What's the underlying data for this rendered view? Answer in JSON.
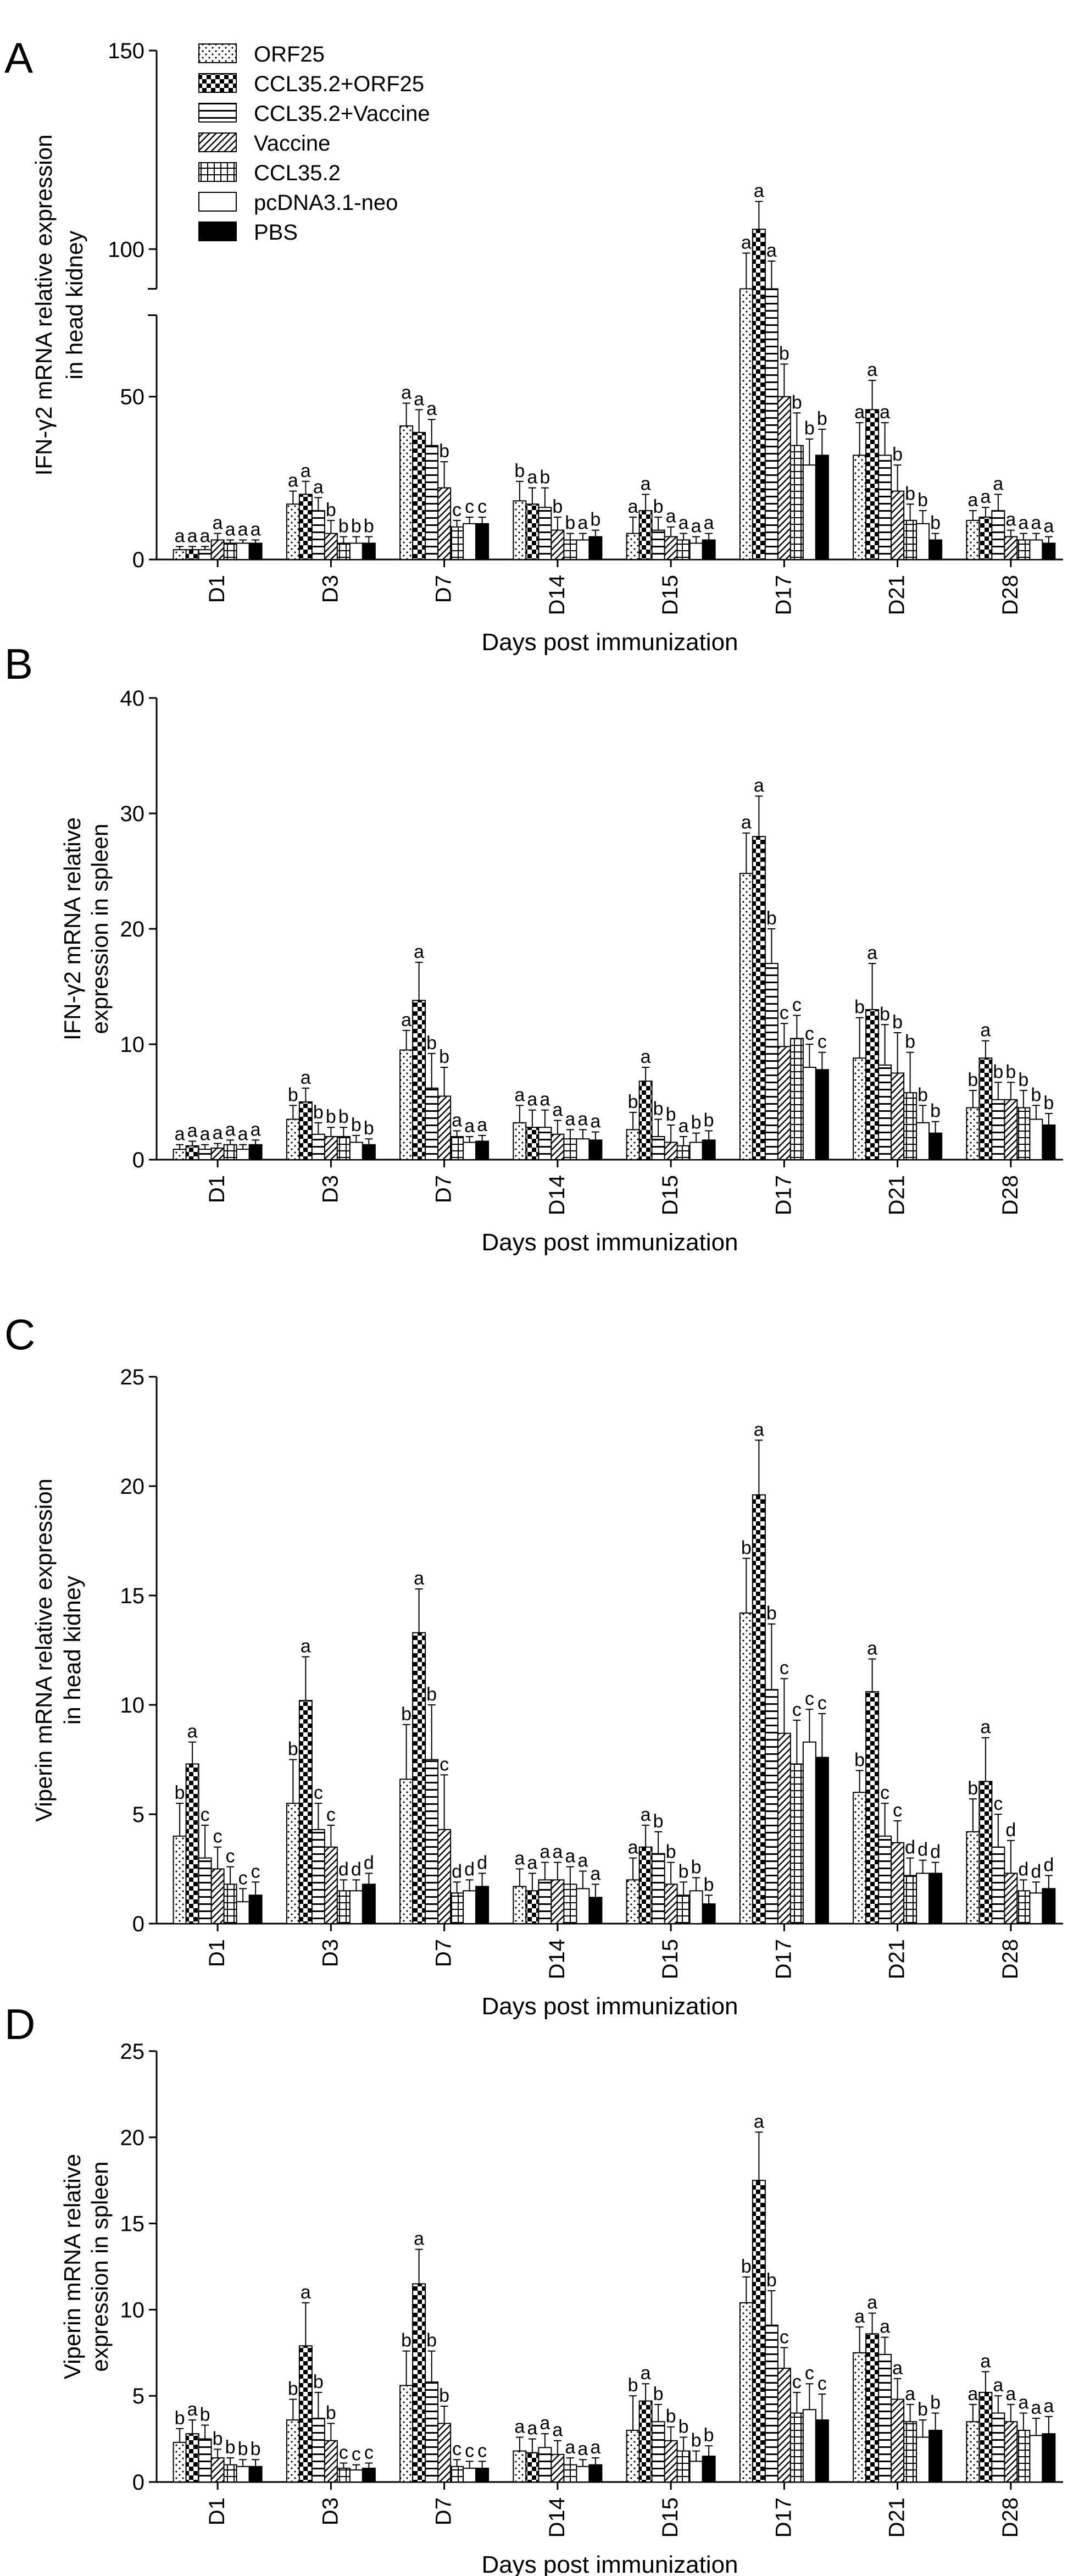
{
  "legend": {
    "items": [
      {
        "label": "ORF25",
        "pattern": "dots"
      },
      {
        "label": "CCL35.2+ORF25",
        "pattern": "checker"
      },
      {
        "label": "CCL35.2+Vaccine",
        "pattern": "hlines"
      },
      {
        "label": "Vaccine",
        "pattern": "diag"
      },
      {
        "label": "CCL35.2",
        "pattern": "grid"
      },
      {
        "label": "pcDNA3.1-neo",
        "pattern": "white"
      },
      {
        "label": "PBS",
        "pattern": "black"
      }
    ]
  },
  "chart_data": [
    {
      "panel": "A",
      "type": "bar",
      "ylabel": [
        "IFN-γ2 mRNA relative expression",
        "in head kidney"
      ],
      "xlabel": "Days post immunization",
      "categories": [
        "D1",
        "D3",
        "D7",
        "D14",
        "D15",
        "D17",
        "D21",
        "D28"
      ],
      "ylim": [
        0,
        150
      ],
      "axis_break": [
        75,
        90
      ],
      "yticks": [
        "0",
        "50",
        "100",
        "150"
      ],
      "series": [
        {
          "name": "ORF25",
          "values": [
            3,
            17,
            41,
            18,
            8,
            89,
            32,
            12
          ],
          "errors": [
            1,
            4,
            7,
            6,
            5,
            10,
            10,
            3
          ],
          "letters": [
            "a",
            "a",
            "a",
            "b",
            "a",
            "a",
            "a",
            "a"
          ]
        },
        {
          "name": "CCL35.2+ORF25",
          "values": [
            3,
            20,
            39,
            17,
            15,
            105,
            46,
            13
          ],
          "errors": [
            1,
            4,
            7,
            5,
            5,
            7,
            9,
            3
          ],
          "letters": [
            "a",
            "a",
            "a",
            "a",
            "a",
            "a",
            "a",
            "a"
          ]
        },
        {
          "name": "CCL35.2+Vaccine",
          "values": [
            3,
            15,
            35,
            16,
            9,
            85,
            32,
            15
          ],
          "errors": [
            1,
            4,
            8,
            6,
            4,
            12,
            10,
            5
          ],
          "letters": [
            "a",
            "a",
            "a",
            "b",
            "b",
            "a",
            "a",
            "a"
          ]
        },
        {
          "name": "Vaccine",
          "values": [
            6,
            8,
            22,
            9,
            7,
            50,
            21,
            7
          ],
          "errors": [
            2,
            4,
            8,
            4,
            3,
            10,
            8,
            2
          ],
          "letters": [
            "a",
            "b",
            "b",
            "b",
            "a",
            "b",
            "b",
            "a"
          ]
        },
        {
          "name": "CCL35.2",
          "values": [
            5,
            5,
            10,
            6,
            6,
            35,
            12,
            6
          ],
          "errors": [
            1,
            2,
            2,
            2,
            2,
            10,
            5,
            2
          ],
          "letters": [
            "a",
            "b",
            "c",
            "b",
            "a",
            "b",
            "b",
            "a"
          ]
        },
        {
          "name": "pcDNA3.1-neo",
          "values": [
            5,
            5,
            11,
            6,
            5,
            29,
            11,
            6
          ],
          "errors": [
            1,
            2,
            2,
            2,
            2,
            8,
            4,
            2
          ],
          "letters": [
            "a",
            "b",
            "c",
            "a",
            "a",
            "b",
            "b",
            "a"
          ]
        },
        {
          "name": "PBS",
          "values": [
            5,
            5,
            11,
            7,
            6,
            32,
            6,
            5
          ],
          "errors": [
            1,
            2,
            2,
            2,
            2,
            8,
            2,
            2
          ],
          "letters": [
            "a",
            "b",
            "c",
            "b",
            "a",
            "b",
            "b",
            "a"
          ]
        }
      ]
    },
    {
      "panel": "B",
      "type": "bar",
      "ylabel": [
        "IFN-γ2 mRNA relative",
        "expression in spleen"
      ],
      "xlabel": "Days post immunization",
      "categories": [
        "D1",
        "D3",
        "D7",
        "D14",
        "D15",
        "D17",
        "D21",
        "D28"
      ],
      "ylim": [
        0,
        40
      ],
      "yticks": [
        "0",
        "10",
        "20",
        "30",
        "40"
      ],
      "series": [
        {
          "name": "ORF25",
          "values": [
            0.9,
            3.5,
            9.5,
            3.2,
            2.6,
            24.8,
            8.8,
            4.5
          ],
          "errors": [
            0.4,
            1.2,
            1.7,
            1.5,
            1.5,
            3.5,
            3.5,
            1.5
          ],
          "letters": [
            "a",
            "b",
            "a",
            "a",
            "b",
            "a",
            "b",
            "b"
          ]
        },
        {
          "name": "CCL35.2+ORF25",
          "values": [
            1.2,
            5.0,
            13.8,
            2.8,
            6.8,
            28.0,
            13.0,
            8.8
          ],
          "errors": [
            0.4,
            1.2,
            3.3,
            1.5,
            1.2,
            3.5,
            4.0,
            1.5
          ],
          "letters": [
            "a",
            "a",
            "a",
            "a",
            "a",
            "a",
            "a",
            "a"
          ]
        },
        {
          "name": "CCL35.2+Vaccine",
          "values": [
            0.9,
            2.2,
            6.2,
            2.8,
            2.0,
            17.0,
            8.2,
            5.2
          ],
          "errors": [
            0.4,
            1.0,
            3.0,
            1.5,
            1.5,
            3.0,
            3.5,
            1.5
          ],
          "letters": [
            "a",
            "b",
            "b",
            "a",
            "b",
            "b",
            "b",
            "b"
          ]
        },
        {
          "name": "Vaccine",
          "values": [
            1.0,
            2.0,
            5.5,
            2.2,
            1.5,
            9.8,
            7.5,
            5.2
          ],
          "errors": [
            0.4,
            0.8,
            2.5,
            1.2,
            1.5,
            2.0,
            3.5,
            1.5
          ],
          "letters": [
            "a",
            "b",
            "b",
            "a",
            "b",
            "c",
            "b",
            "b"
          ]
        },
        {
          "name": "CCL35.2",
          "values": [
            1.3,
            2.0,
            2.0,
            1.8,
            1.2,
            10.5,
            5.8,
            4.5
          ],
          "errors": [
            0.4,
            0.8,
            0.5,
            0.8,
            0.8,
            2.0,
            3.5,
            1.5
          ],
          "letters": [
            "a",
            "b",
            "a",
            "a",
            "a",
            "c",
            "b",
            "b"
          ]
        },
        {
          "name": "pcDNA3.1-neo",
          "values": [
            0.9,
            1.5,
            1.5,
            1.8,
            1.5,
            8.0,
            3.2,
            3.5
          ],
          "errors": [
            0.4,
            0.6,
            0.5,
            0.8,
            0.8,
            2.0,
            1.5,
            1.2
          ],
          "letters": [
            "a",
            "b",
            "a",
            "a",
            "b",
            "c",
            "b",
            "b"
          ]
        },
        {
          "name": "PBS",
          "values": [
            1.3,
            1.3,
            1.6,
            1.7,
            1.7,
            7.8,
            2.3,
            3.0
          ],
          "errors": [
            0.4,
            0.5,
            0.5,
            0.7,
            0.8,
            1.5,
            1.0,
            1.0
          ],
          "letters": [
            "a",
            "b",
            "a",
            "a",
            "b",
            "c",
            "b",
            "b"
          ]
        }
      ]
    },
    {
      "panel": "C",
      "type": "bar",
      "ylabel": [
        "Viperin mRNA relative expression",
        "in head kidney"
      ],
      "xlabel": "Days post immunization",
      "categories": [
        "D1",
        "D3",
        "D7",
        "D14",
        "D15",
        "D17",
        "D21",
        "D28"
      ],
      "ylim": [
        0,
        25
      ],
      "yticks": [
        "0",
        "5",
        "10",
        "15",
        "20",
        "25"
      ],
      "series": [
        {
          "name": "ORF25",
          "values": [
            4.0,
            5.5,
            6.6,
            1.7,
            2.0,
            14.2,
            6.0,
            4.2
          ],
          "errors": [
            1.5,
            2.0,
            2.5,
            0.8,
            1.0,
            2.5,
            1.0,
            1.5
          ],
          "letters": [
            "b",
            "b",
            "b",
            "a",
            "a",
            "b",
            "b",
            "b"
          ]
        },
        {
          "name": "CCL35.2+ORF25",
          "values": [
            7.3,
            10.2,
            13.3,
            1.5,
            3.5,
            19.6,
            10.6,
            6.5
          ],
          "errors": [
            1.0,
            2.0,
            2.0,
            0.8,
            1.0,
            2.5,
            1.5,
            2.0
          ],
          "letters": [
            "a",
            "a",
            "a",
            "a",
            "a",
            "a",
            "a",
            "a"
          ]
        },
        {
          "name": "CCL35.2+Vaccine",
          "values": [
            3.0,
            4.3,
            7.5,
            2.0,
            3.2,
            10.7,
            4.0,
            3.5
          ],
          "errors": [
            1.5,
            1.2,
            2.5,
            0.8,
            1.0,
            3.0,
            1.5,
            1.5
          ],
          "letters": [
            "c",
            "c",
            "b",
            "a",
            "b",
            "b",
            "c",
            "c"
          ]
        },
        {
          "name": "Vaccine",
          "values": [
            2.5,
            3.5,
            4.3,
            2.0,
            1.8,
            8.7,
            3.7,
            2.3
          ],
          "errors": [
            1.0,
            1.0,
            2.5,
            0.8,
            1.0,
            2.5,
            1.0,
            1.5
          ],
          "letters": [
            "c",
            "c",
            "c",
            "a",
            "b",
            "c",
            "c",
            "d"
          ]
        },
        {
          "name": "CCL35.2",
          "values": [
            1.8,
            1.5,
            1.4,
            1.8,
            1.3,
            7.3,
            2.2,
            1.5
          ],
          "errors": [
            0.8,
            0.5,
            0.5,
            0.8,
            0.6,
            2.0,
            0.8,
            0.5
          ],
          "letters": [
            "c",
            "d",
            "d",
            "a",
            "b",
            "c",
            "d",
            "d"
          ]
        },
        {
          "name": "pcDNA3.1-neo",
          "values": [
            1.0,
            1.5,
            1.5,
            1.6,
            1.5,
            8.3,
            2.3,
            1.4
          ],
          "errors": [
            0.6,
            0.5,
            0.5,
            0.8,
            0.6,
            1.5,
            0.6,
            0.5
          ],
          "letters": [
            "c",
            "d",
            "d",
            "a",
            "b",
            "c",
            "d",
            "d"
          ]
        },
        {
          "name": "PBS",
          "values": [
            1.3,
            1.8,
            1.7,
            1.2,
            0.9,
            7.6,
            2.3,
            1.6
          ],
          "errors": [
            0.6,
            0.5,
            0.6,
            0.6,
            0.4,
            2.0,
            0.5,
            0.6
          ],
          "letters": [
            "c",
            "d",
            "d",
            "a",
            "b",
            "c",
            "d",
            "d"
          ]
        }
      ]
    },
    {
      "panel": "D",
      "type": "bar",
      "ylabel": [
        "Viperin mRNA relative",
        "expression in spleen"
      ],
      "xlabel": "Days post immunization",
      "categories": [
        "D1",
        "D3",
        "D7",
        "D14",
        "D15",
        "D17",
        "D21",
        "D28"
      ],
      "ylim": [
        0,
        25
      ],
      "yticks": [
        "0",
        "5",
        "10",
        "15",
        "20",
        "25"
      ],
      "series": [
        {
          "name": "ORF25",
          "values": [
            2.3,
            3.6,
            5.6,
            1.8,
            3.0,
            10.4,
            7.5,
            3.5
          ],
          "errors": [
            0.8,
            1.2,
            2.0,
            0.8,
            2.0,
            1.5,
            1.5,
            1.0
          ],
          "letters": [
            "b",
            "b",
            "b",
            "a",
            "b",
            "b",
            "a",
            "a"
          ]
        },
        {
          "name": "CCL35.2+ORF25",
          "values": [
            2.8,
            7.9,
            11.5,
            1.7,
            4.7,
            17.5,
            8.6,
            5.2
          ],
          "errors": [
            0.8,
            2.5,
            2.0,
            0.8,
            1.0,
            2.8,
            1.2,
            1.2
          ],
          "letters": [
            "a",
            "a",
            "a",
            "a",
            "a",
            "a",
            "a",
            "a"
          ]
        },
        {
          "name": "CCL35.2+Vaccine",
          "values": [
            2.5,
            3.7,
            5.8,
            2.0,
            3.5,
            9.1,
            7.4,
            4.0
          ],
          "errors": [
            0.8,
            1.5,
            1.8,
            0.8,
            1.0,
            2.0,
            1.0,
            1.0
          ],
          "letters": [
            "b",
            "b",
            "b",
            "a",
            "b",
            "b",
            "a",
            "a"
          ]
        },
        {
          "name": "Vaccine",
          "values": [
            1.4,
            2.4,
            3.4,
            1.6,
            2.4,
            6.6,
            4.8,
            3.5
          ],
          "errors": [
            0.5,
            1.0,
            1.0,
            0.8,
            0.8,
            1.2,
            1.2,
            1.0
          ],
          "letters": [
            "b",
            "b",
            "b",
            "a",
            "b",
            "c",
            "a",
            "a"
          ]
        },
        {
          "name": "CCL35.2",
          "values": [
            1.0,
            0.8,
            0.9,
            1.0,
            1.8,
            4.0,
            3.5,
            3.0
          ],
          "errors": [
            0.4,
            0.3,
            0.4,
            0.4,
            0.8,
            1.2,
            1.0,
            1.0
          ],
          "letters": [
            "b",
            "c",
            "c",
            "a",
            "b",
            "c",
            "a",
            "a"
          ]
        },
        {
          "name": "pcDNA3.1-neo",
          "values": [
            0.9,
            0.7,
            0.8,
            0.9,
            1.2,
            4.2,
            2.6,
            2.7
          ],
          "errors": [
            0.4,
            0.3,
            0.4,
            0.4,
            0.6,
            1.5,
            1.0,
            1.0
          ],
          "letters": [
            "b",
            "c",
            "c",
            "a",
            "b",
            "c",
            "b",
            "a"
          ]
        },
        {
          "name": "PBS",
          "values": [
            0.9,
            0.8,
            0.8,
            1.0,
            1.5,
            3.6,
            3.0,
            2.8
          ],
          "errors": [
            0.4,
            0.3,
            0.4,
            0.4,
            0.6,
            1.5,
            1.0,
            1.0
          ],
          "letters": [
            "b",
            "c",
            "c",
            "a",
            "b",
            "c",
            "b",
            "a"
          ]
        }
      ]
    }
  ]
}
